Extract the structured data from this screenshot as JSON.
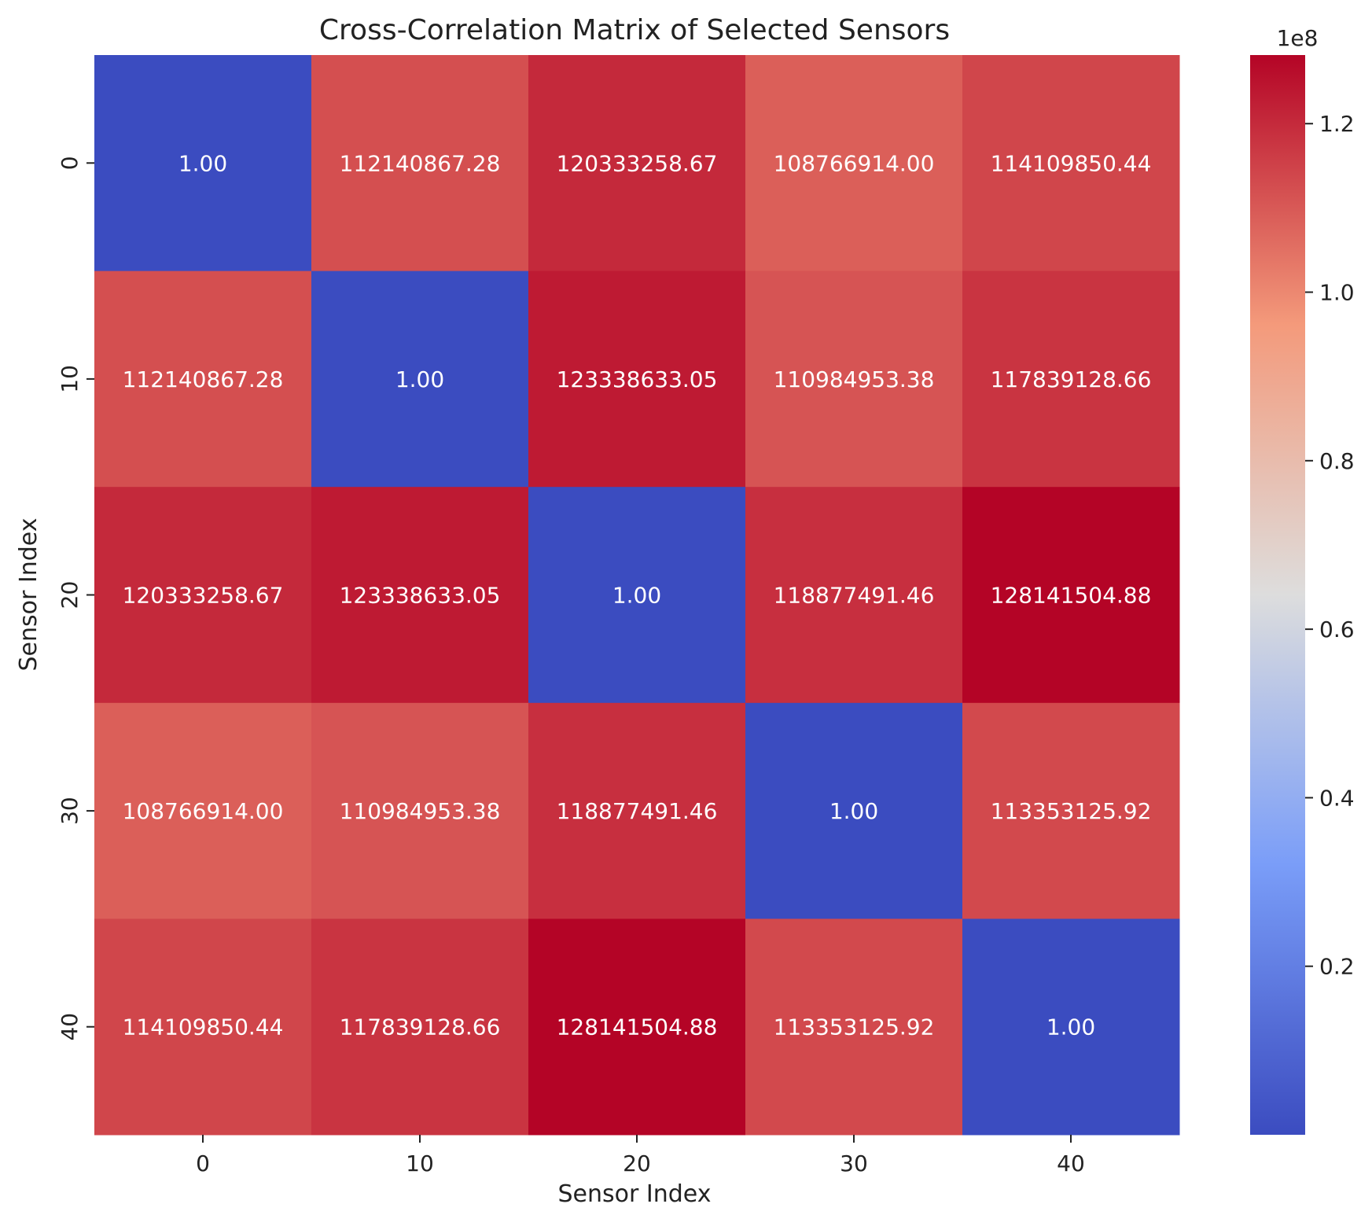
{
  "chart_data": {
    "type": "heatmap",
    "title": "Cross-Correlation Matrix of Selected Sensors",
    "xlabel": "Sensor Index",
    "ylabel": "Sensor Index",
    "x_categories": [
      "0",
      "10",
      "20",
      "30",
      "40"
    ],
    "y_categories": [
      "0",
      "10",
      "20",
      "30",
      "40"
    ],
    "values": [
      [
        1.0,
        112140867.28,
        120333258.67,
        108766914.0,
        114109850.44
      ],
      [
        112140867.28,
        1.0,
        123338633.05,
        110984953.38,
        117839128.66
      ],
      [
        120333258.67,
        123338633.05,
        1.0,
        118877491.46,
        128141504.88
      ],
      [
        108766914.0,
        110984953.38,
        118877491.46,
        1.0,
        113353125.92
      ],
      [
        114109850.44,
        117839128.66,
        128141504.88,
        113353125.92,
        1.0
      ]
    ],
    "cell_labels": [
      [
        "1.00",
        "112140867.28",
        "120333258.67",
        "108766914.00",
        "114109850.44"
      ],
      [
        "112140867.28",
        "1.00",
        "123338633.05",
        "110984953.38",
        "117839128.66"
      ],
      [
        "120333258.67",
        "123338633.05",
        "1.00",
        "118877491.46",
        "128141504.88"
      ],
      [
        "108766914.00",
        "110984953.38",
        "118877491.46",
        "1.00",
        "113353125.92"
      ],
      [
        "114109850.44",
        "117839128.66",
        "128141504.88",
        "113353125.92",
        "1.00"
      ]
    ],
    "colormap": "coolwarm",
    "colorbar": {
      "min": 1.0,
      "max": 128141504.88,
      "offset_label": "1e8",
      "ticks": [
        0.2,
        0.4,
        0.6,
        0.8,
        1.0,
        1.2
      ],
      "tick_labels": [
        "0.2",
        "0.4",
        "0.6",
        "0.8",
        "1.0",
        "1.2"
      ],
      "scale": 100000000
    },
    "colors": {
      "cold": "#3b4cc0",
      "neutral": "#dddddd",
      "hot": "#b40426",
      "annotation_text": "#ffffff",
      "axis_text": "#222222"
    }
  }
}
